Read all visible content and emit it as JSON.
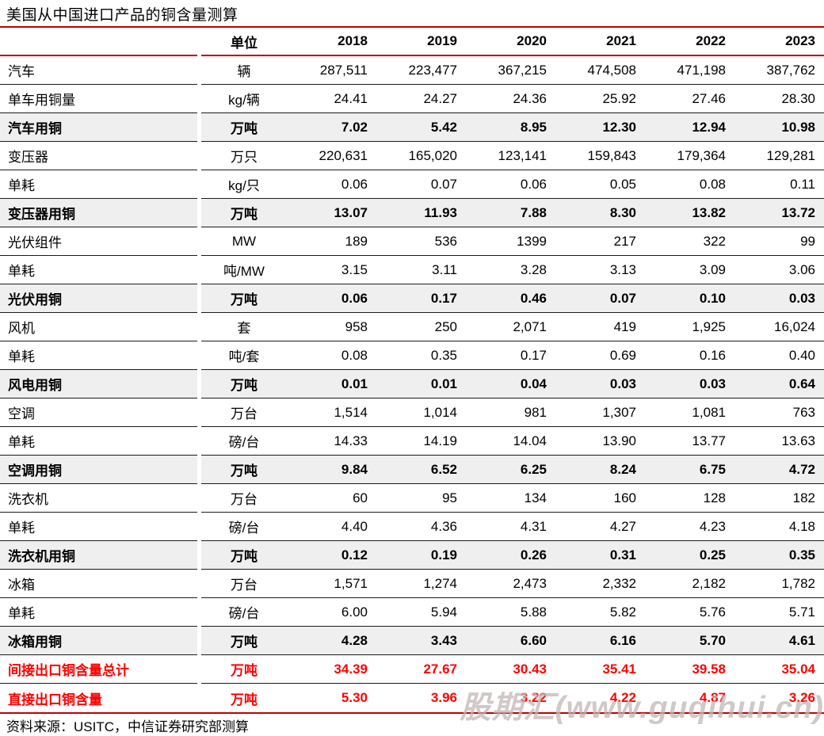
{
  "page": {
    "title": "美国从中国进口产品的铜含量测算",
    "source": "资料来源：USITC，中信证券研究部测算",
    "watermark": "股期汇(www.guqihui.cn)"
  },
  "colors": {
    "red_line": "#c00000",
    "red_text": "#ff0000",
    "subtotal_bg": "#efefef",
    "row_border": "#1a1a1a",
    "watermark": "#c2b6b6"
  },
  "chart_data": {
    "type": "table",
    "title": "美国从中国进口产品的铜含量测算",
    "columns": [
      "",
      "单位",
      "2018",
      "2019",
      "2020",
      "2021",
      "2022",
      "2023"
    ],
    "rows": [
      {
        "label": "汽车",
        "unit": "辆",
        "values": [
          "287,511",
          "223,477",
          "367,215",
          "474,508",
          "471,198",
          "387,762"
        ],
        "style": "normal"
      },
      {
        "label": "单车用铜量",
        "unit": "kg/辆",
        "values": [
          "24.41",
          "24.27",
          "24.36",
          "25.92",
          "27.46",
          "28.30"
        ],
        "style": "normal"
      },
      {
        "label": "汽车用铜",
        "unit": "万吨",
        "values": [
          "7.02",
          "5.42",
          "8.95",
          "12.30",
          "12.94",
          "10.98"
        ],
        "style": "subtotal"
      },
      {
        "label": "变压器",
        "unit": "万只",
        "values": [
          "220,631",
          "165,020",
          "123,141",
          "159,843",
          "179,364",
          "129,281"
        ],
        "style": "normal"
      },
      {
        "label": "单耗",
        "unit": "kg/只",
        "values": [
          "0.06",
          "0.07",
          "0.06",
          "0.05",
          "0.08",
          "0.11"
        ],
        "style": "normal"
      },
      {
        "label": "变压器用铜",
        "unit": "万吨",
        "values": [
          "13.07",
          "11.93",
          "7.88",
          "8.30",
          "13.82",
          "13.72"
        ],
        "style": "subtotal"
      },
      {
        "label": "光伏组件",
        "unit": "MW",
        "values": [
          "189",
          "536",
          "1399",
          "217",
          "322",
          "99"
        ],
        "style": "normal"
      },
      {
        "label": "单耗",
        "unit": "吨/MW",
        "values": [
          "3.15",
          "3.11",
          "3.28",
          "3.13",
          "3.09",
          "3.06"
        ],
        "style": "normal"
      },
      {
        "label": "光伏用铜",
        "unit": "万吨",
        "values": [
          "0.06",
          "0.17",
          "0.46",
          "0.07",
          "0.10",
          "0.03"
        ],
        "style": "subtotal"
      },
      {
        "label": "风机",
        "unit": "套",
        "values": [
          "958",
          "250",
          "2,071",
          "419",
          "1,925",
          "16,024"
        ],
        "style": "normal"
      },
      {
        "label": "单耗",
        "unit": "吨/套",
        "values": [
          "0.08",
          "0.35",
          "0.17",
          "0.69",
          "0.16",
          "0.40"
        ],
        "style": "normal"
      },
      {
        "label": "风电用铜",
        "unit": "万吨",
        "values": [
          "0.01",
          "0.01",
          "0.04",
          "0.03",
          "0.03",
          "0.64"
        ],
        "style": "subtotal"
      },
      {
        "label": "空调",
        "unit": "万台",
        "values": [
          "1,514",
          "1,014",
          "981",
          "1,307",
          "1,081",
          "763"
        ],
        "style": "normal"
      },
      {
        "label": "单耗",
        "unit": "磅/台",
        "values": [
          "14.33",
          "14.19",
          "14.04",
          "13.90",
          "13.77",
          "13.63"
        ],
        "style": "normal"
      },
      {
        "label": "空调用铜",
        "unit": "万吨",
        "values": [
          "9.84",
          "6.52",
          "6.25",
          "8.24",
          "6.75",
          "4.72"
        ],
        "style": "subtotal"
      },
      {
        "label": "洗衣机",
        "unit": "万台",
        "values": [
          "60",
          "95",
          "134",
          "160",
          "128",
          "182"
        ],
        "style": "normal"
      },
      {
        "label": "单耗",
        "unit": "磅/台",
        "values": [
          "4.40",
          "4.36",
          "4.31",
          "4.27",
          "4.23",
          "4.18"
        ],
        "style": "normal"
      },
      {
        "label": "洗衣机用铜",
        "unit": "万吨",
        "values": [
          "0.12",
          "0.19",
          "0.26",
          "0.31",
          "0.25",
          "0.35"
        ],
        "style": "subtotal"
      },
      {
        "label": "冰箱",
        "unit": "万台",
        "values": [
          "1,571",
          "1,274",
          "2,473",
          "2,332",
          "2,182",
          "1,782"
        ],
        "style": "normal"
      },
      {
        "label": "单耗",
        "unit": "磅/台",
        "values": [
          "6.00",
          "5.94",
          "5.88",
          "5.82",
          "5.76",
          "5.71"
        ],
        "style": "normal"
      },
      {
        "label": "冰箱用铜",
        "unit": "万吨",
        "values": [
          "4.28",
          "3.43",
          "6.60",
          "6.16",
          "5.70",
          "4.61"
        ],
        "style": "subtotal"
      },
      {
        "label": "间接出口铜含量总计",
        "unit": "万吨",
        "values": [
          "34.39",
          "27.67",
          "30.43",
          "35.41",
          "39.58",
          "35.04"
        ],
        "style": "total"
      },
      {
        "label": "直接出口铜含量",
        "unit": "万吨",
        "values": [
          "5.30",
          "3.96",
          "3.22",
          "4.22",
          "4.87",
          "3.26"
        ],
        "style": "total"
      }
    ]
  }
}
